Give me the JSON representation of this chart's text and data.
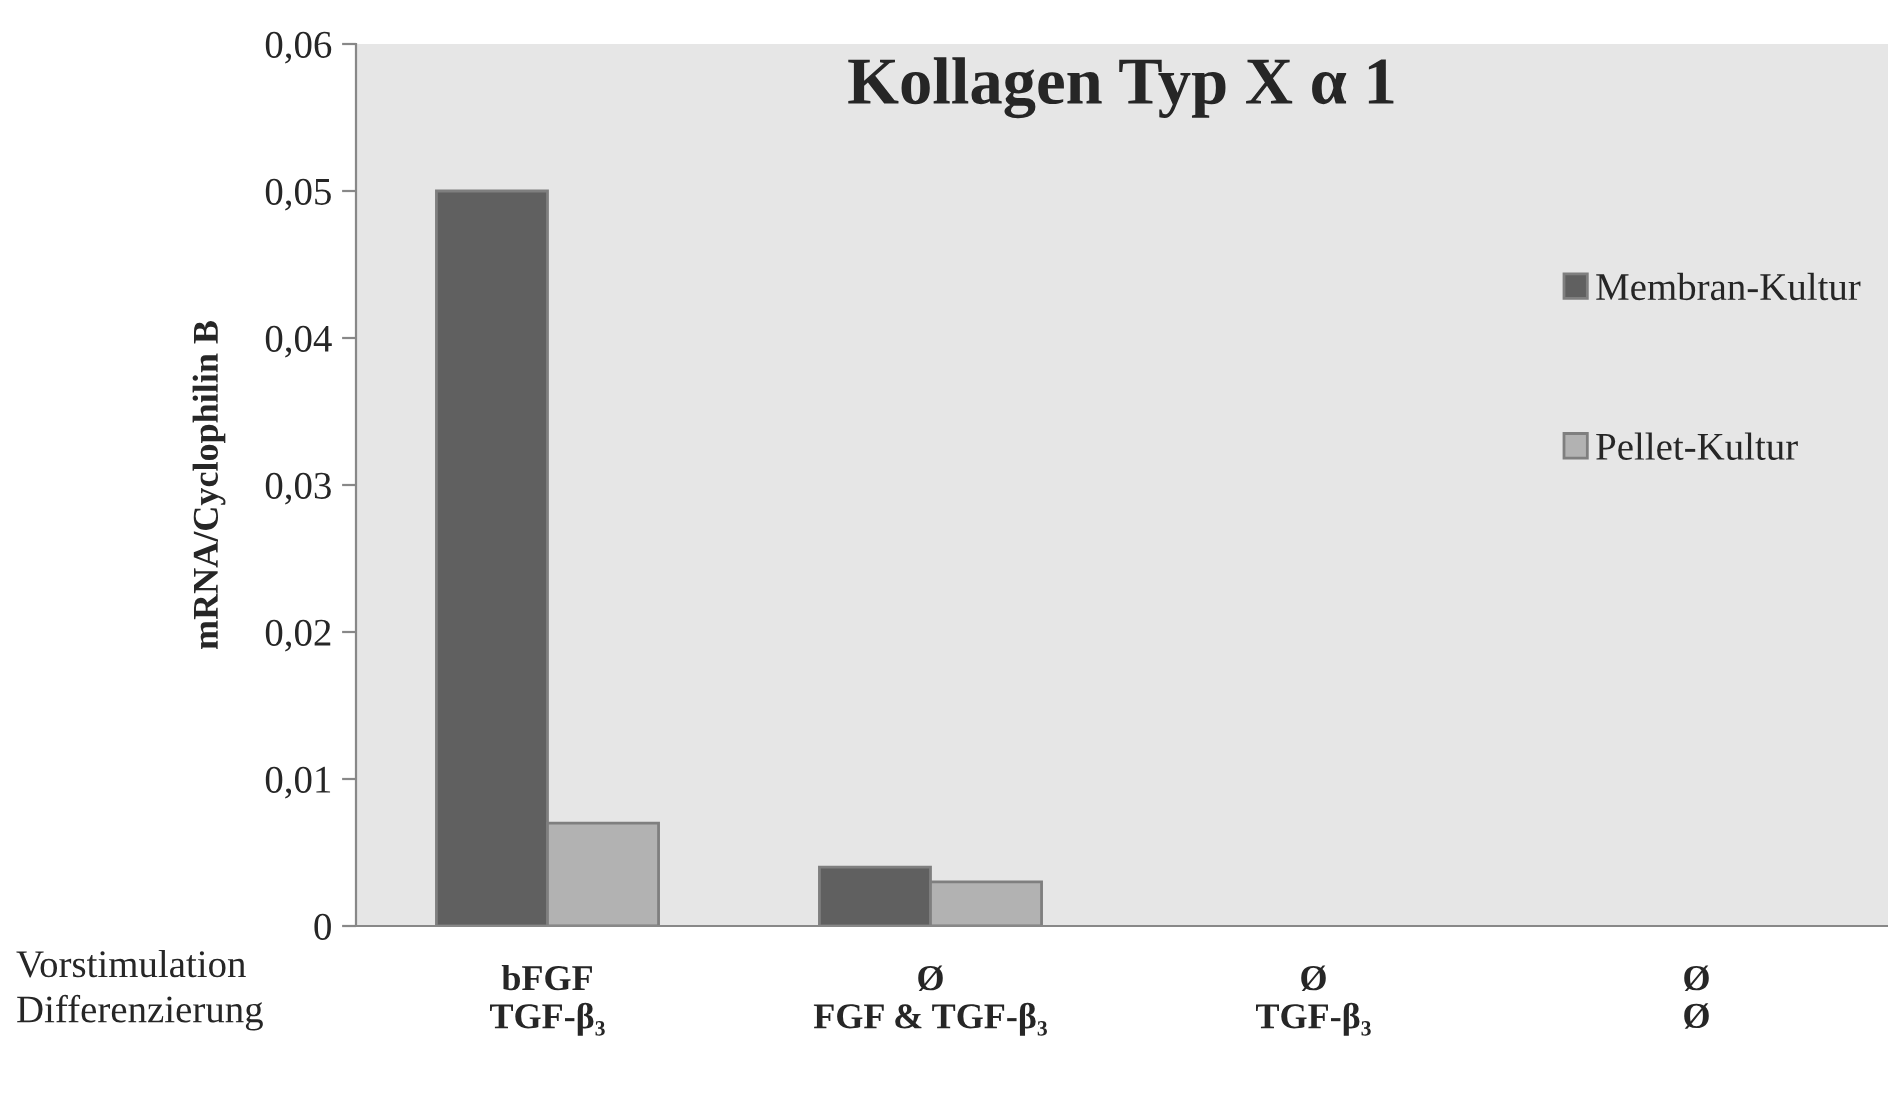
{
  "chart_data": {
    "type": "bar",
    "title": "Kollagen Typ X α 1",
    "ylabel": "mRNA/Cyclophilin B",
    "categories": [
      "bFGF\nTGF-β₃",
      "Ø\nFGF & TGF-β₃",
      "Ø\nTGF-β₃",
      "Ø\nØ"
    ],
    "series": [
      {
        "name": "Membran-Kultur",
        "color": "#606060",
        "values": [
          0.05,
          0.004,
          0,
          0
        ]
      },
      {
        "name": "Pellet-Kultur",
        "color": "#b2b2b2",
        "values": [
          0.007,
          0.003,
          0,
          0
        ]
      }
    ],
    "ylim": [
      0,
      0.06
    ],
    "yticks": [
      {
        "value": 0,
        "label": "0"
      },
      {
        "value": 0.01,
        "label": "0,01"
      },
      {
        "value": 0.02,
        "label": "0,02"
      },
      {
        "value": 0.03,
        "label": "0,03"
      },
      {
        "value": 0.04,
        "label": "0,04"
      },
      {
        "value": 0.05,
        "label": "0,05"
      },
      {
        "value": 0.06,
        "label": "0,06"
      }
    ],
    "annotations": [
      "Vorstimulation\nDifferenzierung"
    ],
    "legend": "right",
    "grid": false
  }
}
